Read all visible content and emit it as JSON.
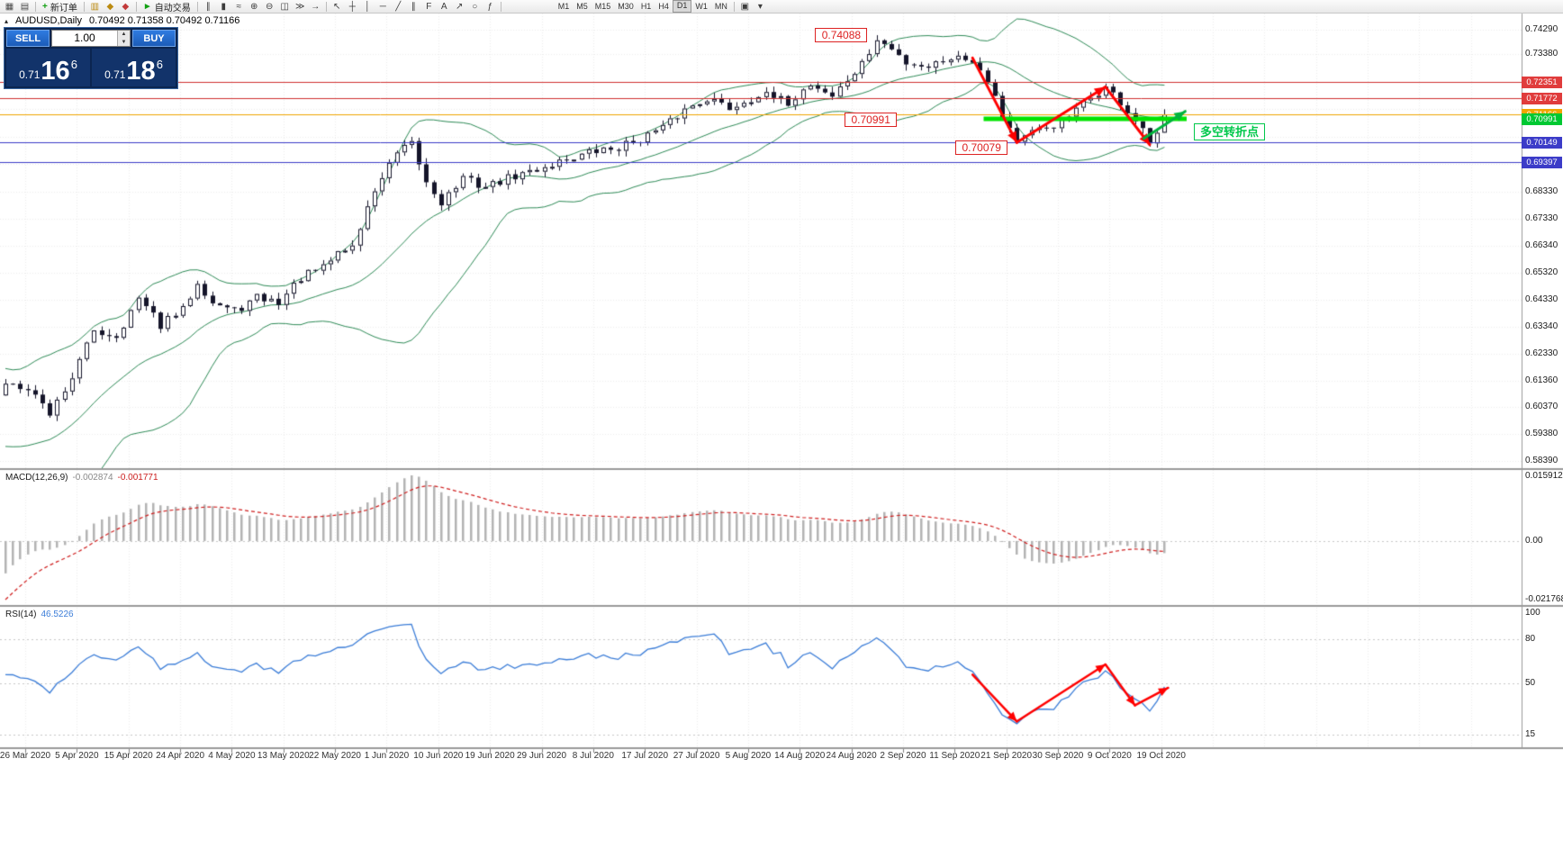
{
  "toolbar": {
    "left_icons": [
      {
        "name": "charts-tile-icon",
        "glyph": "▦",
        "color": "#4a4a4a"
      },
      {
        "name": "new-chart-icon",
        "glyph": "▤",
        "color": "#4a4a4a"
      }
    ],
    "new_order": {
      "label": "新订单",
      "glyph": "+",
      "glyph_color": "#12a012"
    },
    "mid_icons1": [
      {
        "name": "market-watch-icon",
        "glyph": "▥",
        "color": "#bb8a10"
      },
      {
        "name": "navigator-icon",
        "glyph": "◆",
        "color": "#bb8a10"
      },
      {
        "name": "terminal-icon",
        "glyph": "◆",
        "color": "#c23a3a"
      }
    ],
    "autotrading": {
      "label": "自动交易",
      "glyph": "►",
      "glyph_color": "#12a012"
    },
    "chart_icons": [
      {
        "name": "bar-chart-icon",
        "glyph": "∥"
      },
      {
        "name": "candlestick-chart-icon",
        "glyph": "▮"
      },
      {
        "name": "line-chart-icon",
        "glyph": "≈"
      },
      {
        "name": "zoom-in-icon",
        "glyph": "⊕"
      },
      {
        "name": "zoom-out-icon",
        "glyph": "⊖"
      },
      {
        "name": "tile-windows-icon",
        "glyph": "◫"
      },
      {
        "name": "auto-scroll-icon",
        "glyph": "≫"
      },
      {
        "name": "chart-shift-icon",
        "glyph": "→"
      }
    ],
    "draw_icons": [
      {
        "name": "cursor-icon",
        "glyph": "↖"
      },
      {
        "name": "crosshair-icon",
        "glyph": "┼"
      },
      {
        "name": "vertical-line-icon",
        "glyph": "│"
      },
      {
        "name": "horizontal-line-icon",
        "glyph": "─"
      },
      {
        "name": "trendline-icon",
        "glyph": "╱"
      },
      {
        "name": "channel-icon",
        "glyph": "∥"
      },
      {
        "name": "fibonacci-icon",
        "glyph": "F"
      },
      {
        "name": "text-icon",
        "glyph": "A"
      },
      {
        "name": "arrows-icon",
        "glyph": "↗"
      },
      {
        "name": "shapes-icon",
        "glyph": "○"
      },
      {
        "name": "indicators-icon",
        "glyph": "ƒ"
      }
    ],
    "timeframes": [
      "M1",
      "M5",
      "M15",
      "M30",
      "H1",
      "H4",
      "D1",
      "W1",
      "MN"
    ],
    "active_timeframe": "D1",
    "right_icons": [
      {
        "name": "templates-icon",
        "glyph": "▣"
      },
      {
        "name": "options-dropdown-icon",
        "glyph": "▾"
      }
    ]
  },
  "chart": {
    "title": "AUDUSD,Daily",
    "ohlc": "0.70492 0.71358 0.70492 0.71166",
    "toggle_glyph": "▴"
  },
  "trade_panel": {
    "sell_label": "SELL",
    "buy_label": "BUY",
    "volume": "1.00",
    "spin_up_glyph": "▲",
    "spin_down_glyph": "▼",
    "bid_prefix": "0.71",
    "bid_big": "16",
    "bid_sup": "6",
    "ask_prefix": "0.71",
    "ask_big": "18",
    "ask_sup": "6"
  },
  "annotations": {
    "high_label": "0.74088",
    "mid_label": "0.70991",
    "low_label": "0.70079",
    "turning_point_label": "多空转折点"
  },
  "macd": {
    "name": "MACD(12,26,9)",
    "value_main": "-0.002874",
    "value_signal": "-0.001771",
    "scale_top": "0.015912",
    "scale_zero": "0.00",
    "scale_bottom": "-0.021768"
  },
  "rsi": {
    "name": "RSI(14)",
    "value": "46.5226",
    "scale_labels": [
      100,
      80,
      50,
      15
    ],
    "levels": [
      80,
      50,
      15
    ]
  },
  "price_scale": {
    "ladder": [
      0.7429,
      0.7338,
      0.6833,
      0.6733,
      0.6634,
      0.6532,
      0.6433,
      0.6334,
      0.6233,
      0.6136,
      0.6037,
      0.5938,
      0.5839
    ],
    "grid_hidden": [
      0.7237,
      0.7136,
      0.7035,
      0.6934
    ],
    "tags": [
      {
        "text": "0.72351",
        "price": 0.72351,
        "color": "#e03c3c",
        "name": "resistance-1"
      },
      {
        "text": "0.71772",
        "price": 0.71772,
        "color": "#e03c3c",
        "name": "resistance-2"
      },
      {
        "text": "0.71166",
        "price": 0.71166,
        "color": "#f0a500",
        "name": "current-price"
      },
      {
        "text": "0.70991",
        "price": 0.70991,
        "color": "#00c832",
        "name": "turning-level"
      },
      {
        "text": "0.70149",
        "price": 0.70149,
        "color": "#3c3cc8",
        "name": "support-1"
      },
      {
        "text": "0.69397",
        "price": 0.69397,
        "color": "#3c3cc8",
        "name": "support-2"
      }
    ]
  },
  "levels": [
    {
      "price": 0.72351,
      "color": "#d03030",
      "width": 1
    },
    {
      "price": 0.71772,
      "color": "#d03030",
      "width": 1
    },
    {
      "price": 0.71166,
      "color": "#f0a500",
      "width": 1
    },
    {
      "price": 0.70149,
      "color": "#3c3cc8",
      "width": 1
    },
    {
      "price": 0.69397,
      "color": "#3c3cc8",
      "width": 1
    }
  ],
  "green_segment": {
    "price": 0.70991,
    "from_index": 132.5,
    "to_index": 160,
    "color": "#00e400",
    "width": 5
  },
  "date_axis": [
    "26 Mar 2020",
    "5 Apr 2020",
    "15 Apr 2020",
    "24 Apr 2020",
    "4 May 2020",
    "13 May 2020",
    "22 May 2020",
    "1 Jun 2020",
    "10 Jun 2020",
    "19 Jun 2020",
    "29 Jun 2020",
    "8 Jul 2020",
    "17 Jul 2020",
    "27 Jul 2020",
    "5 Aug 2020",
    "14 Aug 2020",
    "24 Aug 2020",
    "2 Sep 2020",
    "11 Sep 2020",
    "21 Sep 2020",
    "30 Sep 2020",
    "9 Oct 2020",
    "19 Oct 2020"
  ],
  "chart_data": [
    {
      "type": "candlestick",
      "symbol": "AUDUSD",
      "timeframe": "Daily",
      "y_range": [
        0.5839,
        0.7429
      ],
      "visible_bars": 158,
      "warmup_anchors": [
        [
          -34,
          0.662
        ],
        [
          -24,
          0.645
        ],
        [
          -12,
          0.572
        ],
        [
          -7,
          0.576
        ],
        [
          -3,
          0.595
        ]
      ],
      "close_anchors": [
        [
          0,
          0.613
        ],
        [
          3,
          0.6115
        ],
        [
          6,
          0.6015
        ],
        [
          9,
          0.615
        ],
        [
          12,
          0.632
        ],
        [
          15,
          0.63
        ],
        [
          18,
          0.6435
        ],
        [
          21,
          0.634
        ],
        [
          24,
          0.6395
        ],
        [
          26,
          0.6505
        ],
        [
          28,
          0.6425
        ],
        [
          31,
          0.639
        ],
        [
          34,
          0.644
        ],
        [
          37,
          0.6425
        ],
        [
          40,
          0.6515
        ],
        [
          43,
          0.655
        ],
        [
          45,
          0.661
        ],
        [
          47,
          0.663
        ],
        [
          50,
          0.684
        ],
        [
          53,
          0.697
        ],
        [
          55,
          0.7005
        ],
        [
          57,
          0.6865
        ],
        [
          59,
          0.6795
        ],
        [
          62,
          0.688
        ],
        [
          65,
          0.685
        ],
        [
          68,
          0.688
        ],
        [
          71,
          0.6905
        ],
        [
          75,
          0.6945
        ],
        [
          79,
          0.6975
        ],
        [
          83,
          0.6995
        ],
        [
          86,
          0.703
        ],
        [
          89,
          0.7065
        ],
        [
          92,
          0.7135
        ],
        [
          95,
          0.718
        ],
        [
          98,
          0.714
        ],
        [
          102,
          0.719
        ],
        [
          106,
          0.716
        ],
        [
          109,
          0.723
        ],
        [
          112,
          0.7185
        ],
        [
          116,
          0.73
        ],
        [
          118,
          0.739
        ],
        [
          120,
          0.7355
        ],
        [
          122,
          0.731
        ],
        [
          125,
          0.7295
        ],
        [
          128,
          0.733
        ],
        [
          131,
          0.732
        ],
        [
          133,
          0.725
        ],
        [
          135,
          0.7115
        ],
        [
          137,
          0.702
        ],
        [
          139,
          0.7045
        ],
        [
          141,
          0.707
        ],
        [
          143,
          0.7085
        ],
        [
          145,
          0.713
        ],
        [
          147,
          0.718
        ],
        [
          149,
          0.7215
        ],
        [
          151,
          0.716
        ],
        [
          153,
          0.709
        ],
        [
          155,
          0.701
        ],
        [
          156,
          0.7049
        ],
        [
          157,
          0.7117
        ]
      ],
      "key_points": {
        "high": {
          "index": 118,
          "price": 0.74088
        },
        "low": {
          "index": 137,
          "price": 0.70079
        },
        "last_candle": {
          "open": 0.70492,
          "high": 0.71358,
          "low": 0.70492,
          "close": 0.71166
        }
      },
      "bollinger": {
        "period": 20,
        "deviation": 2,
        "color": "#2E8B57"
      },
      "zigzag_red": [
        [
          131,
          0.7325
        ],
        [
          137,
          0.7013
        ],
        [
          149,
          0.7218
        ],
        [
          155,
          0.7005
        ]
      ],
      "arrow_green": [
        [
          154.2,
          0.7028
        ],
        [
          159.8,
          0.7128
        ]
      ]
    },
    {
      "type": "macd_histogram",
      "params": "12,26,9",
      "current": [
        -0.002874,
        -0.001771
      ],
      "scale": {
        "max": 0.015912,
        "zero": 0.0,
        "min": -0.021768
      },
      "histogram_color": "#b4b4b4",
      "signal_color": "#d02020",
      "signal_style": "dashed"
    },
    {
      "type": "rsi_line",
      "period": 14,
      "current": 46.5226,
      "color": "#3b7dd8",
      "scale": [
        100,
        80,
        50,
        15
      ],
      "zigzag_red": [
        [
          131,
          56
        ],
        [
          137,
          24
        ],
        [
          149,
          63
        ],
        [
          153,
          35
        ]
      ],
      "arrow_red": [
        [
          153,
          35
        ],
        [
          157.5,
          47
        ]
      ]
    }
  ]
}
